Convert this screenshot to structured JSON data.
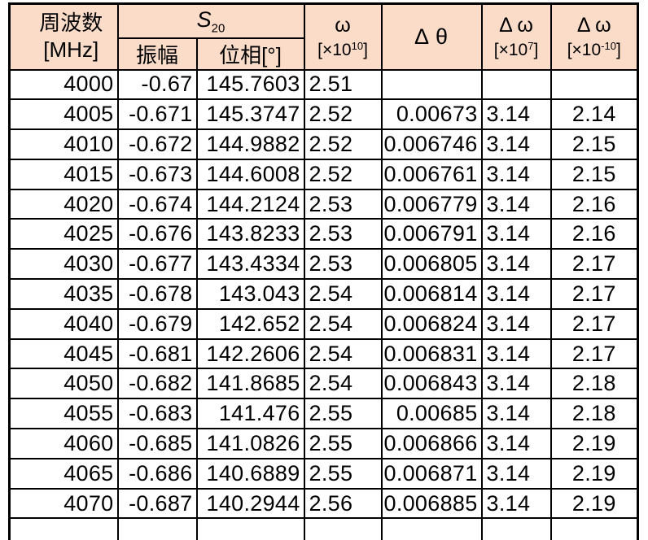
{
  "colors": {
    "header_bg": "#fbdcc8",
    "border": "#000000",
    "text": "#000000",
    "cell_bg": "#ffffff"
  },
  "table": {
    "header": {
      "freq_line1": "周波数",
      "freq_line2": "[MHz]",
      "s20": {
        "base": "S",
        "sub": "20"
      },
      "amplitude": "振幅",
      "phase": "位相[°]",
      "omega": {
        "line1": "ω",
        "bracket_prefix": "[×10",
        "exponent": "10",
        "bracket_suffix": "]"
      },
      "delta_theta": "Δ θ",
      "delta_omega_e7": {
        "line1": "Δ ω",
        "bracket_prefix": "[×10",
        "exponent": "7",
        "bracket_suffix": "]"
      },
      "delta_omega_e10": {
        "line1": "Δ ω",
        "bracket_prefix": "[×10",
        "exponent": "-10",
        "bracket_suffix": "]"
      }
    },
    "rows": [
      [
        "4000",
        "-0.67",
        "145.7603",
        "2.51",
        "",
        "",
        ""
      ],
      [
        "4005",
        "-0.671",
        "145.3747",
        "2.52",
        "0.00673",
        "3.14",
        "2.14"
      ],
      [
        "4010",
        "-0.672",
        "144.9882",
        "2.52",
        "0.006746",
        "3.14",
        "2.15"
      ],
      [
        "4015",
        "-0.673",
        "144.6008",
        "2.52",
        "0.006761",
        "3.14",
        "2.15"
      ],
      [
        "4020",
        "-0.674",
        "144.2124",
        "2.53",
        "0.006779",
        "3.14",
        "2.16"
      ],
      [
        "4025",
        "-0.676",
        "143.8233",
        "2.53",
        "0.006791",
        "3.14",
        "2.16"
      ],
      [
        "4030",
        "-0.677",
        "143.4334",
        "2.53",
        "0.006805",
        "3.14",
        "2.17"
      ],
      [
        "4035",
        "-0.678",
        "143.043",
        "2.54",
        "0.006814",
        "3.14",
        "2.17"
      ],
      [
        "4040",
        "-0.679",
        "142.652",
        "2.54",
        "0.006824",
        "3.14",
        "2.17"
      ],
      [
        "4045",
        "-0.681",
        "142.2606",
        "2.54",
        "0.006831",
        "3.14",
        "2.17"
      ],
      [
        "4050",
        "-0.682",
        "141.8685",
        "2.54",
        "0.006843",
        "3.14",
        "2.18"
      ],
      [
        "4055",
        "-0.683",
        "141.476",
        "2.55",
        "0.00685",
        "3.14",
        "2.18"
      ],
      [
        "4060",
        "-0.685",
        "141.0826",
        "2.55",
        "0.006866",
        "3.14",
        "2.19"
      ],
      [
        "4065",
        "-0.686",
        "140.6889",
        "2.55",
        "0.006871",
        "3.14",
        "2.19"
      ],
      [
        "4070",
        "-0.687",
        "140.2944",
        "2.56",
        "0.006885",
        "3.14",
        "2.19"
      ]
    ]
  }
}
